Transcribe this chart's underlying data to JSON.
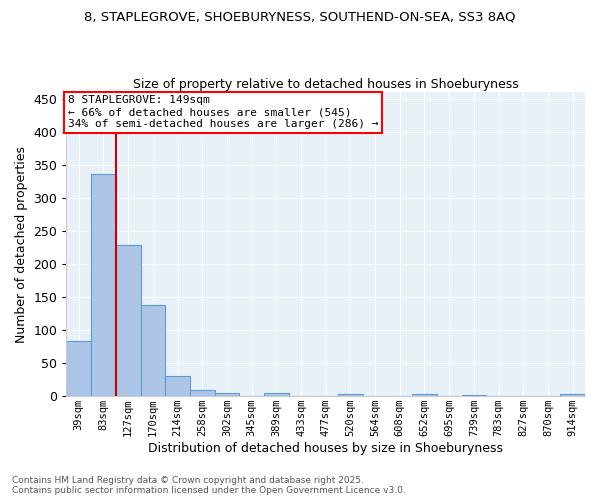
{
  "title_line1": "8, STAPLEGROVE, SHOEBURYNESS, SOUTHEND-ON-SEA, SS3 8AQ",
  "title_line2": "Size of property relative to detached houses in Shoeburyness",
  "xlabel": "Distribution of detached houses by size in Shoeburyness",
  "ylabel": "Number of detached properties",
  "categories": [
    "39sqm",
    "83sqm",
    "127sqm",
    "170sqm",
    "214sqm",
    "258sqm",
    "302sqm",
    "345sqm",
    "389sqm",
    "433sqm",
    "477sqm",
    "520sqm",
    "564sqm",
    "608sqm",
    "652sqm",
    "695sqm",
    "739sqm",
    "783sqm",
    "827sqm",
    "870sqm",
    "914sqm"
  ],
  "values": [
    84,
    336,
    229,
    138,
    30,
    10,
    5,
    0,
    5,
    0,
    0,
    3,
    0,
    0,
    3,
    0,
    2,
    0,
    0,
    0,
    3
  ],
  "bar_color": "#adc6e8",
  "bar_edge_color": "#5b9bd5",
  "bar_width": 1.0,
  "vline_x": 1.5,
  "vline_color": "#cc0000",
  "annotation_text": "8 STAPLEGROVE: 149sqm\n← 66% of detached houses are smaller (545)\n34% of semi-detached houses are larger (286) →",
  "ylim": [
    0,
    460
  ],
  "yticks": [
    0,
    50,
    100,
    150,
    200,
    250,
    300,
    350,
    400,
    450
  ],
  "bg_color": "#e8f0f8",
  "grid_color": "#ffffff",
  "footer_line1": "Contains HM Land Registry data © Crown copyright and database right 2025.",
  "footer_line2": "Contains public sector information licensed under the Open Government Licence v3.0."
}
